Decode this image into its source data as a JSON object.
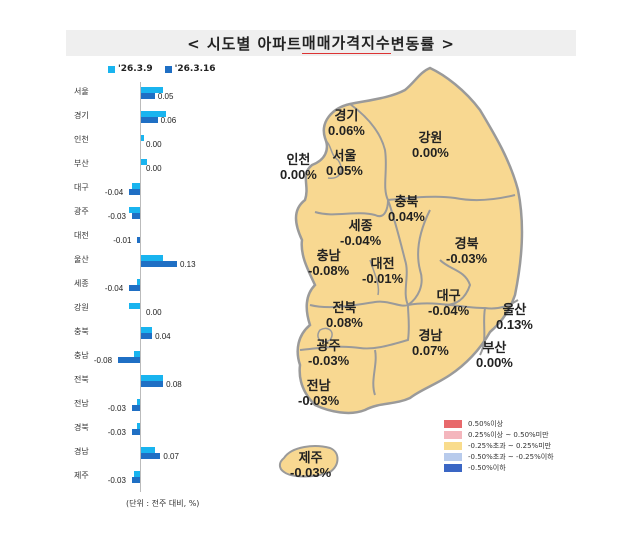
{
  "title": {
    "prefix": "< 시도별 아파트 ",
    "highlight": "매매가격지수",
    "suffix": " 변동률 >"
  },
  "legend_top": {
    "series": [
      {
        "name": "'26.3.9",
        "color": "#19b4ef"
      },
      {
        "name": "'26.3.16",
        "color": "#1f6fc4"
      }
    ]
  },
  "unit_note": "(단위 : 전주 대비, %)",
  "chart_data": [
    {
      "type": "bar",
      "orientation": "horizontal",
      "title": "시도별 아파트 매매가격지수 변동률",
      "categories": [
        "서울",
        "경기",
        "인천",
        "부산",
        "대구",
        "광주",
        "대전",
        "울산",
        "세종",
        "강원",
        "충북",
        "충남",
        "전북",
        "전남",
        "경북",
        "경남",
        "제주"
      ],
      "series": [
        {
          "name": "'26.3.9",
          "color": "#19b4ef",
          "values": [
            0.08,
            0.09,
            0.01,
            0.02,
            -0.03,
            -0.04,
            0.0,
            0.08,
            -0.01,
            -0.04,
            0.04,
            -0.02,
            0.08,
            -0.01,
            -0.01,
            0.05,
            -0.02
          ]
        },
        {
          "name": "'26.3.16",
          "color": "#1f6fc4",
          "values": [
            0.05,
            0.06,
            0.0,
            0.0,
            -0.04,
            -0.03,
            -0.01,
            0.13,
            -0.04,
            0.0,
            0.04,
            -0.08,
            0.08,
            -0.03,
            -0.03,
            0.07,
            -0.03
          ]
        }
      ],
      "data_labels": [
        "0.05",
        "0.06",
        "0.00",
        "0.00",
        "-0.04",
        "-0.03",
        "-0.01",
        "0.13",
        "-0.04",
        "0.00",
        "0.04",
        "-0.08",
        "0.08",
        "-0.03",
        "-0.03",
        "0.07",
        "-0.03"
      ],
      "xlabel": "(단위 : 전주 대비, %)",
      "ylabel": "",
      "legend_position": "top",
      "grid": false
    },
    {
      "type": "map",
      "title": "시도별 아파트 매매가격지수 변동률 (지도)",
      "regions": [
        {
          "name": "경기",
          "value": "0.06%"
        },
        {
          "name": "강원",
          "value": "0.00%"
        },
        {
          "name": "인천",
          "value": "0.00%"
        },
        {
          "name": "서울",
          "value": "0.05%"
        },
        {
          "name": "충북",
          "value": "0.04%"
        },
        {
          "name": "세종",
          "value": "-0.04%"
        },
        {
          "name": "경북",
          "value": "-0.03%"
        },
        {
          "name": "충남",
          "value": "-0.08%"
        },
        {
          "name": "대전",
          "value": "-0.01%"
        },
        {
          "name": "대구",
          "value": "-0.04%"
        },
        {
          "name": "울산",
          "value": "0.13%"
        },
        {
          "name": "전북",
          "value": "0.08%"
        },
        {
          "name": "경남",
          "value": "0.07%"
        },
        {
          "name": "부산",
          "value": "0.00%"
        },
        {
          "name": "광주",
          "value": "-0.03%"
        },
        {
          "name": "전남",
          "value": "-0.03%"
        },
        {
          "name": "제주",
          "value": "-0.03%"
        }
      ],
      "legend": [
        {
          "label": "0.50%이상",
          "color": "#e8696b"
        },
        {
          "label": "0.25%이상 ~ 0.50%미만",
          "color": "#f4b6bd"
        },
        {
          "label": "-0.25%초과 ~ 0.25%미만",
          "color": "#f9dc8c"
        },
        {
          "label": "-0.50%초과 ~ -0.25%이하",
          "color": "#b8cbec"
        },
        {
          "label": "-0.50%이하",
          "color": "#3a66c4"
        }
      ]
    }
  ],
  "map": {
    "fill": "#f8d891",
    "border": "#9a9a9a"
  }
}
